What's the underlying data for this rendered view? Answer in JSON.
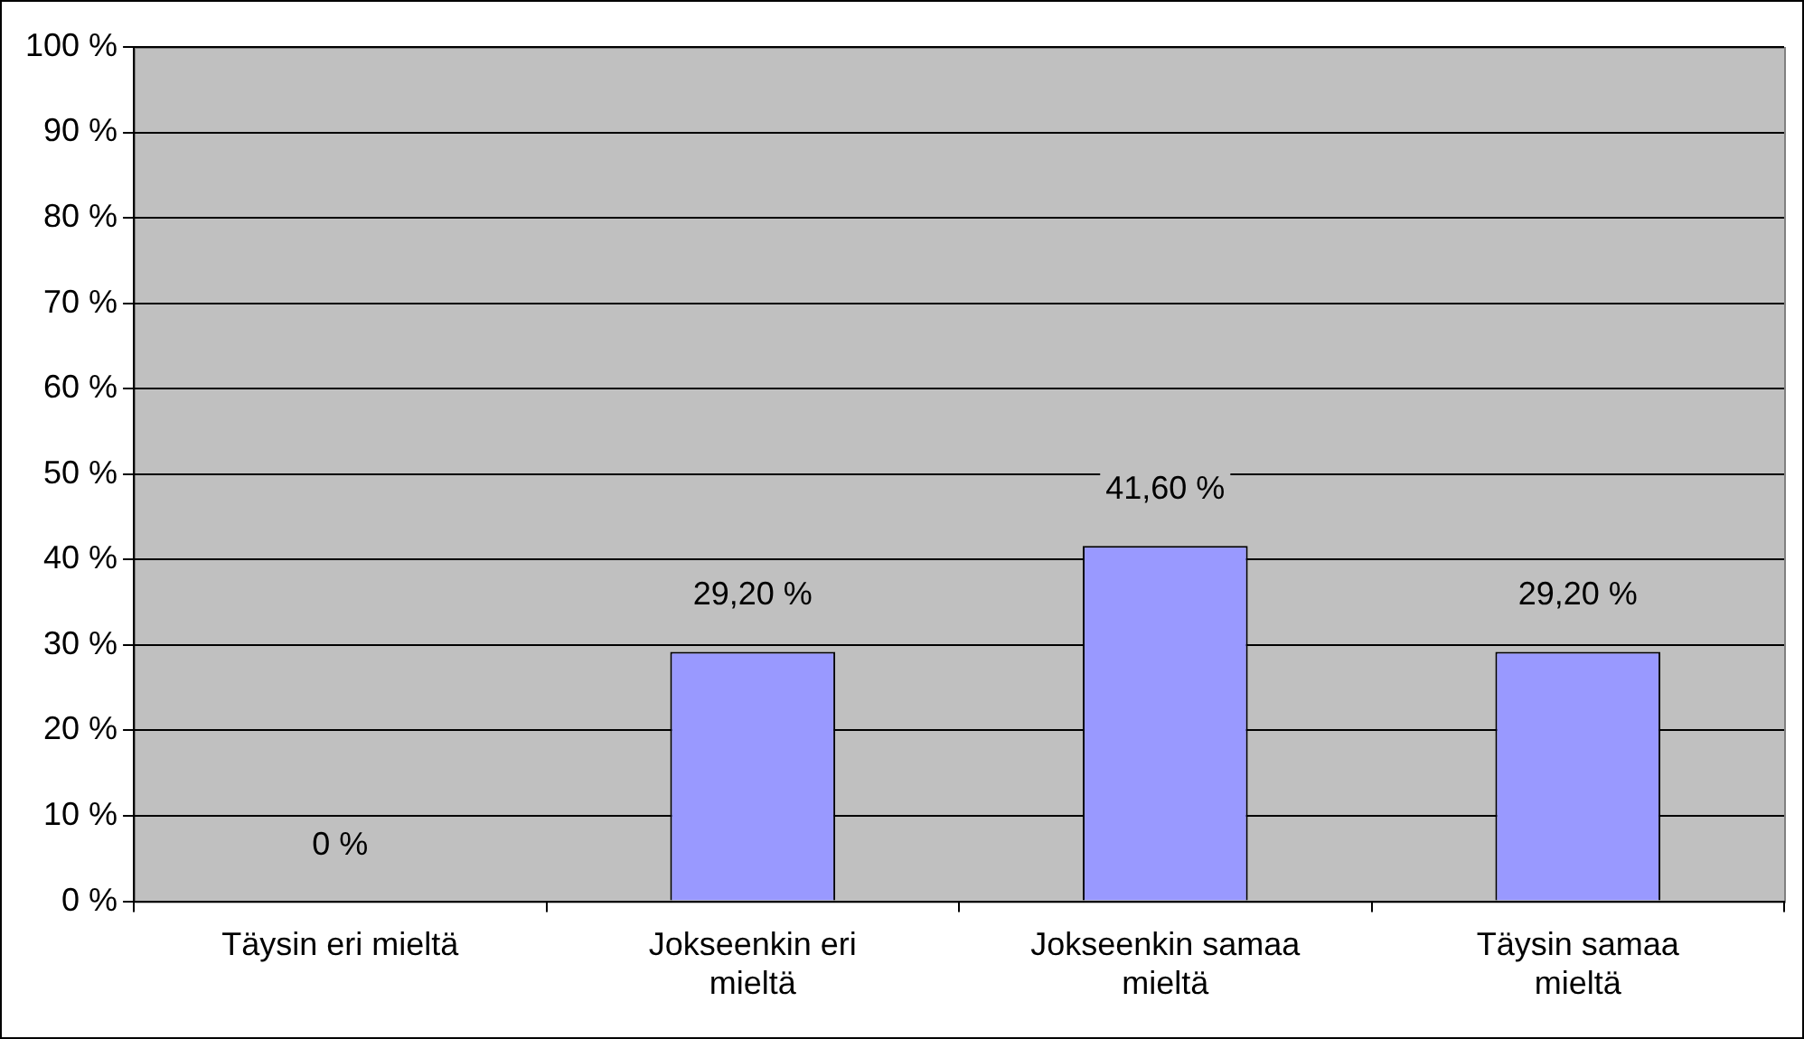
{
  "chart_data": {
    "type": "bar",
    "categories": [
      "Täysin eri mieltä",
      "Jokseenkin eri mieltä",
      "Jokseenkin samaa mieltä",
      "Täysin samaa mieltä"
    ],
    "values": [
      0,
      29.2,
      41.6,
      29.2
    ],
    "color": "#9999ff",
    "value_labels": [
      "0 %",
      "29,20 %",
      "41,60 %",
      "29,20 %"
    ],
    "ylim": [
      0,
      100
    ],
    "yticks": [
      {
        "value": 0,
        "label": "0 %"
      },
      {
        "value": 10,
        "label": "10 %"
      },
      {
        "value": 20,
        "label": "20 %"
      },
      {
        "value": 30,
        "label": "30 %"
      },
      {
        "value": 40,
        "label": "40 %"
      },
      {
        "value": 50,
        "label": "50 %"
      },
      {
        "value": 60,
        "label": "60 %"
      },
      {
        "value": 70,
        "label": "70 %"
      },
      {
        "value": 80,
        "label": "80 %"
      },
      {
        "value": 90,
        "label": "90 %"
      },
      {
        "value": 100,
        "label": "100 %"
      }
    ],
    "grid": "y"
  }
}
